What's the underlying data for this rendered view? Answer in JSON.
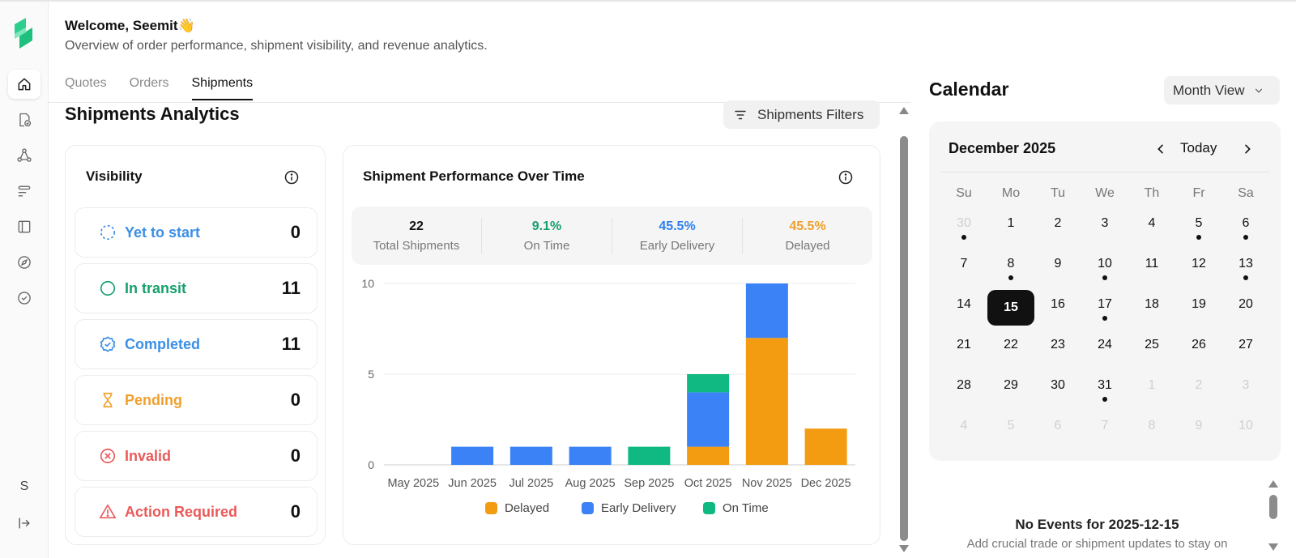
{
  "header": {
    "welcome": "Welcome, Seemit👋",
    "subtitle": "Overview of order performance, shipment visibility, and revenue analytics."
  },
  "sidebar": {
    "items": [
      "home-icon",
      "quote-check-icon",
      "network-icon",
      "list-icon",
      "folder-icon",
      "compass-icon",
      "check-circle-icon"
    ],
    "user_initial": "S",
    "logout_icon": "logout-icon"
  },
  "tabs": [
    {
      "label": "Quotes",
      "active": false
    },
    {
      "label": "Orders",
      "active": false
    },
    {
      "label": "Shipments",
      "active": true
    }
  ],
  "analytics": {
    "title": "Shipments Analytics",
    "filter_label": "Shipments Filters"
  },
  "visibility": {
    "title": "Visibility",
    "rows": [
      {
        "label": "Yet to start",
        "count": "0",
        "color": "#3b8fe6",
        "icon": "dashed-circle-icon"
      },
      {
        "label": "In transit",
        "count": "11",
        "color": "#17a06d",
        "icon": "circle-icon"
      },
      {
        "label": "Completed",
        "count": "11",
        "color": "#3b8fe6",
        "icon": "badge-check-icon"
      },
      {
        "label": "Pending",
        "count": "0",
        "color": "#f0a02d",
        "icon": "hourglass-icon"
      },
      {
        "label": "Invalid",
        "count": "0",
        "color": "#ea5a5a",
        "icon": "x-circle-icon"
      },
      {
        "label": "Action Required",
        "count": "0",
        "color": "#ea5a5a",
        "icon": "warning-icon"
      }
    ]
  },
  "performance": {
    "title": "Shipment Performance Over Time",
    "stats": [
      {
        "value": "22",
        "label": "Total Shipments",
        "color": "#111111"
      },
      {
        "value": "9.1%",
        "label": "On Time",
        "color": "#17a06d"
      },
      {
        "value": "45.5%",
        "label": "Early Delivery",
        "color": "#2f80ed"
      },
      {
        "value": "45.5%",
        "label": "Delayed",
        "color": "#f0a02d"
      }
    ]
  },
  "chart_data": {
    "type": "bar",
    "stacked": true,
    "categories": [
      "May 2025",
      "Jun 2025",
      "Jul 2025",
      "Aug 2025",
      "Sep 2025",
      "Oct 2025",
      "Nov 2025",
      "Dec 2025"
    ],
    "series": [
      {
        "name": "Delayed",
        "color": "#f39c12",
        "values": [
          0,
          0,
          0,
          0,
          0,
          1,
          7,
          2
        ]
      },
      {
        "name": "Early Delivery",
        "color": "#3b82f6",
        "values": [
          0,
          1,
          1,
          1,
          0,
          3,
          3,
          0
        ]
      },
      {
        "name": "On Time",
        "color": "#10b981",
        "values": [
          0,
          0,
          0,
          0,
          1,
          1,
          0,
          0
        ]
      }
    ],
    "yticks": [
      0,
      5,
      10
    ],
    "ylim": [
      0,
      10
    ],
    "grid": true,
    "legend": "bottom"
  },
  "calendar": {
    "title": "Calendar",
    "view": "Month View",
    "month_label": "December 2025",
    "today_label": "Today",
    "weekdays": [
      "Su",
      "Mo",
      "Tu",
      "We",
      "Th",
      "Fr",
      "Sa"
    ],
    "days": [
      {
        "d": "30",
        "muted": true,
        "dot": true
      },
      {
        "d": "1"
      },
      {
        "d": "2"
      },
      {
        "d": "3"
      },
      {
        "d": "4"
      },
      {
        "d": "5",
        "dot": true
      },
      {
        "d": "6",
        "dot": true
      },
      {
        "d": "7"
      },
      {
        "d": "8",
        "dot": true
      },
      {
        "d": "9"
      },
      {
        "d": "10",
        "dot": true
      },
      {
        "d": "11"
      },
      {
        "d": "12"
      },
      {
        "d": "13",
        "dot": true
      },
      {
        "d": "14"
      },
      {
        "d": "15",
        "today": true
      },
      {
        "d": "16"
      },
      {
        "d": "17",
        "dot": true
      },
      {
        "d": "18"
      },
      {
        "d": "19"
      },
      {
        "d": "20"
      },
      {
        "d": "21"
      },
      {
        "d": "22"
      },
      {
        "d": "23"
      },
      {
        "d": "24"
      },
      {
        "d": "25"
      },
      {
        "d": "26"
      },
      {
        "d": "27"
      },
      {
        "d": "28"
      },
      {
        "d": "29"
      },
      {
        "d": "30"
      },
      {
        "d": "31",
        "dot": true
      },
      {
        "d": "1",
        "muted": true
      },
      {
        "d": "2",
        "muted": true
      },
      {
        "d": "3",
        "muted": true
      },
      {
        "d": "4",
        "muted": true
      },
      {
        "d": "5",
        "muted": true
      },
      {
        "d": "6",
        "muted": true
      },
      {
        "d": "7",
        "muted": true
      },
      {
        "d": "8",
        "muted": true
      },
      {
        "d": "9",
        "muted": true
      },
      {
        "d": "10",
        "muted": true
      }
    ],
    "no_events_title": "No Events for 2025-12-15",
    "no_events_sub": "Add crucial trade or shipment updates to stay on"
  }
}
